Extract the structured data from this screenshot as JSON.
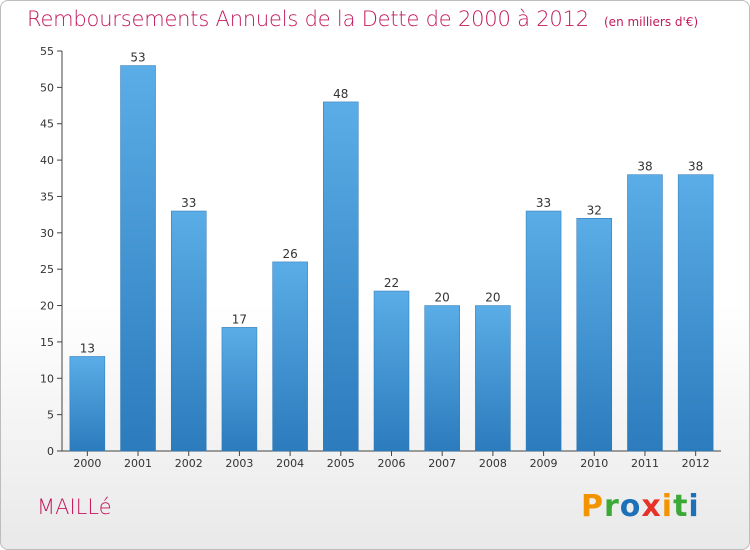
{
  "title": "Remboursements Annuels de la Dette de 2000 à 2012",
  "unit": "(en milliers d'€)",
  "place_name": "MAILLé",
  "logo": {
    "text": "Proxiti",
    "letters": [
      {
        "char": "P",
        "color": "#f29400"
      },
      {
        "char": "r",
        "color": "#3aa935"
      },
      {
        "char": "o",
        "color": "#1d71b8"
      },
      {
        "char": "x",
        "color": "#e6332a"
      },
      {
        "char": "i",
        "color": "#f29400"
      },
      {
        "char": "t",
        "color": "#3aa935"
      },
      {
        "char": "i",
        "color": "#1d71b8"
      }
    ]
  },
  "chart_data": {
    "type": "bar",
    "categories": [
      "2000",
      "2001",
      "2002",
      "2003",
      "2004",
      "2005",
      "2006",
      "2007",
      "2008",
      "2009",
      "2010",
      "2011",
      "2012"
    ],
    "values": [
      13,
      53,
      33,
      17,
      26,
      48,
      22,
      20,
      20,
      33,
      32,
      38,
      38
    ],
    "ylim": [
      0,
      55
    ],
    "yticks": [
      0,
      5,
      10,
      15,
      20,
      25,
      30,
      35,
      40,
      45,
      50,
      55
    ],
    "grid": false,
    "bar_color_top": "#5aade6",
    "bar_color_bottom": "#2c7bbd"
  }
}
